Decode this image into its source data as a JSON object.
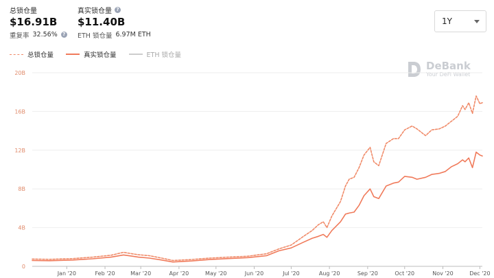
{
  "header": {
    "total_locked": {
      "label": "总锁仓量",
      "value": "$16.91B",
      "sub_label": "重复率",
      "sub_value": "32.56%"
    },
    "real_locked": {
      "label": "真实锁仓量",
      "value": "$11.40B",
      "sub_label": "ETH 锁仓量",
      "sub_value": "6.97M ETH"
    }
  },
  "range_select": {
    "value": "1Y"
  },
  "watermark": {
    "brand": "DeBank",
    "tagline": "Your DeFi Wallet"
  },
  "colors": {
    "total": "#f08a68",
    "real": "#f07a5a",
    "eth": "#cccccc",
    "grid": "#eeeeee",
    "axis_text": "#e08a6a"
  },
  "chart_data": {
    "type": "line",
    "legend": [
      "总锁仓量",
      "真实锁仓量",
      "ETH 锁仓量"
    ],
    "legend_position": "top-left",
    "x_unit": "date",
    "x_range": [
      "2019-12-18",
      "2020-12-17"
    ],
    "y_unit": "B USD",
    "ylim": [
      0,
      20
    ],
    "y_ticks": [
      0,
      4,
      8,
      12,
      16,
      20
    ],
    "y_tick_labels": [
      "0",
      "4B",
      "8B",
      "12B",
      "16B",
      "20B"
    ],
    "x_ticks": [
      {
        "date": "2020-01-15",
        "label": "Jan '20"
      },
      {
        "date": "2020-02-15",
        "label": "Feb '20"
      },
      {
        "date": "2020-03-15",
        "label": "Mar '20"
      },
      {
        "date": "2020-04-15",
        "label": "Apr '20"
      },
      {
        "date": "2020-05-15",
        "label": "May '20"
      },
      {
        "date": "2020-06-15",
        "label": "Jun '20"
      },
      {
        "date": "2020-07-15",
        "label": "Jul '20"
      },
      {
        "date": "2020-08-15",
        "label": "Aug '20"
      },
      {
        "date": "2020-09-15",
        "label": "Sep '20"
      },
      {
        "date": "2020-10-15",
        "label": "Oct '20"
      },
      {
        "date": "2020-11-15",
        "label": "Nov '20"
      },
      {
        "date": "2020-12-15",
        "label": "Dec '20"
      }
    ],
    "grid": true,
    "series": [
      {
        "name": "总锁仓量",
        "style": "dashed",
        "points": [
          [
            "2019-12-18",
            0.75
          ],
          [
            "2020-01-01",
            0.72
          ],
          [
            "2020-01-20",
            0.8
          ],
          [
            "2020-02-05",
            0.95
          ],
          [
            "2020-02-20",
            1.15
          ],
          [
            "2020-03-01",
            1.45
          ],
          [
            "2020-03-08",
            1.3
          ],
          [
            "2020-03-13",
            1.2
          ],
          [
            "2020-03-22",
            1.1
          ],
          [
            "2020-04-01",
            0.85
          ],
          [
            "2020-04-10",
            0.6
          ],
          [
            "2020-04-25",
            0.7
          ],
          [
            "2020-05-10",
            0.85
          ],
          [
            "2020-05-25",
            0.95
          ],
          [
            "2020-06-10",
            1.05
          ],
          [
            "2020-06-25",
            1.3
          ],
          [
            "2020-07-05",
            1.8
          ],
          [
            "2020-07-15",
            2.2
          ],
          [
            "2020-07-25",
            3.1
          ],
          [
            "2020-08-01",
            3.7
          ],
          [
            "2020-08-06",
            4.3
          ],
          [
            "2020-08-10",
            4.6
          ],
          [
            "2020-08-13",
            4.0
          ],
          [
            "2020-08-17",
            5.2
          ],
          [
            "2020-08-24",
            6.7
          ],
          [
            "2020-08-28",
            8.3
          ],
          [
            "2020-08-31",
            9.0
          ],
          [
            "2020-09-04",
            9.2
          ],
          [
            "2020-09-08",
            10.2
          ],
          [
            "2020-09-12",
            11.5
          ],
          [
            "2020-09-17",
            12.3
          ],
          [
            "2020-09-20",
            10.8
          ],
          [
            "2020-09-24",
            10.4
          ],
          [
            "2020-09-30",
            12.7
          ],
          [
            "2020-10-06",
            13.2
          ],
          [
            "2020-10-10",
            13.2
          ],
          [
            "2020-10-15",
            14.1
          ],
          [
            "2020-10-21",
            14.5
          ],
          [
            "2020-10-25",
            14.2
          ],
          [
            "2020-11-01",
            13.5
          ],
          [
            "2020-11-06",
            14.1
          ],
          [
            "2020-11-12",
            14.2
          ],
          [
            "2020-11-17",
            14.5
          ],
          [
            "2020-11-22",
            15.0
          ],
          [
            "2020-11-27",
            15.5
          ],
          [
            "2020-12-01",
            16.6
          ],
          [
            "2020-12-03",
            16.2
          ],
          [
            "2020-12-06",
            16.9
          ],
          [
            "2020-12-09",
            15.8
          ],
          [
            "2020-12-12",
            17.6
          ],
          [
            "2020-12-15",
            16.8
          ],
          [
            "2020-12-17",
            16.91
          ]
        ]
      },
      {
        "name": "真实锁仓量",
        "style": "solid",
        "points": [
          [
            "2019-12-18",
            0.6
          ],
          [
            "2020-01-01",
            0.58
          ],
          [
            "2020-01-20",
            0.65
          ],
          [
            "2020-02-05",
            0.78
          ],
          [
            "2020-02-20",
            0.95
          ],
          [
            "2020-03-01",
            1.18
          ],
          [
            "2020-03-08",
            1.05
          ],
          [
            "2020-03-13",
            0.95
          ],
          [
            "2020-03-22",
            0.85
          ],
          [
            "2020-04-01",
            0.65
          ],
          [
            "2020-04-10",
            0.45
          ],
          [
            "2020-04-25",
            0.55
          ],
          [
            "2020-05-10",
            0.7
          ],
          [
            "2020-05-25",
            0.8
          ],
          [
            "2020-06-10",
            0.9
          ],
          [
            "2020-06-25",
            1.1
          ],
          [
            "2020-07-05",
            1.6
          ],
          [
            "2020-07-15",
            1.9
          ],
          [
            "2020-07-25",
            2.5
          ],
          [
            "2020-08-01",
            2.9
          ],
          [
            "2020-08-06",
            3.1
          ],
          [
            "2020-08-10",
            3.3
          ],
          [
            "2020-08-13",
            3.0
          ],
          [
            "2020-08-17",
            3.7
          ],
          [
            "2020-08-24",
            4.6
          ],
          [
            "2020-08-28",
            5.4
          ],
          [
            "2020-08-31",
            5.5
          ],
          [
            "2020-09-04",
            5.6
          ],
          [
            "2020-09-08",
            6.3
          ],
          [
            "2020-09-12",
            7.3
          ],
          [
            "2020-09-17",
            8.0
          ],
          [
            "2020-09-20",
            7.2
          ],
          [
            "2020-09-24",
            7.0
          ],
          [
            "2020-09-30",
            8.3
          ],
          [
            "2020-10-06",
            8.6
          ],
          [
            "2020-10-10",
            8.7
          ],
          [
            "2020-10-15",
            9.3
          ],
          [
            "2020-10-21",
            9.2
          ],
          [
            "2020-10-25",
            9.0
          ],
          [
            "2020-11-01",
            9.2
          ],
          [
            "2020-11-06",
            9.5
          ],
          [
            "2020-11-12",
            9.6
          ],
          [
            "2020-11-17",
            9.8
          ],
          [
            "2020-11-22",
            10.3
          ],
          [
            "2020-11-27",
            10.6
          ],
          [
            "2020-12-01",
            11.0
          ],
          [
            "2020-12-03",
            10.8
          ],
          [
            "2020-12-06",
            11.2
          ],
          [
            "2020-12-09",
            10.2
          ],
          [
            "2020-12-12",
            11.8
          ],
          [
            "2020-12-15",
            11.5
          ],
          [
            "2020-12-17",
            11.4
          ]
        ]
      }
    ]
  }
}
